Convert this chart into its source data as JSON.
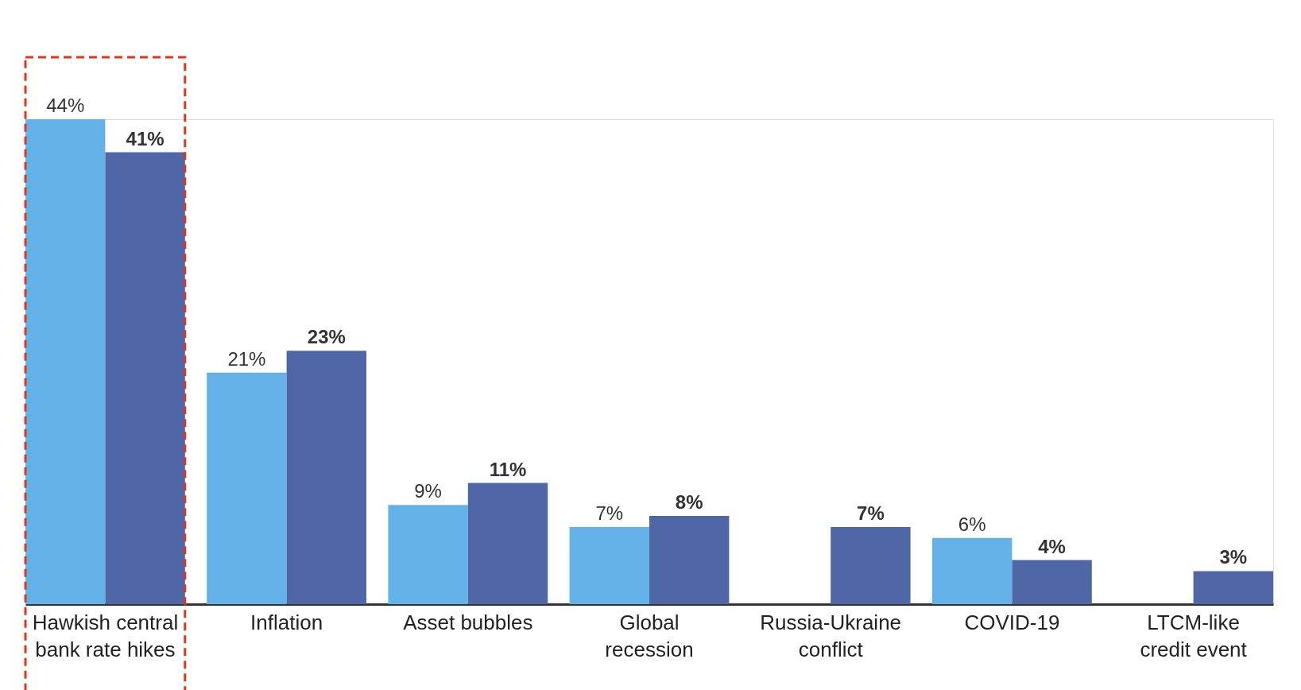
{
  "chart_data": {
    "type": "bar",
    "categories": [
      "Hawkish central bank rate hikes",
      "Inflation",
      "Asset bubbles",
      "Global recession",
      "Russia-Ukraine conflict",
      "COVID-19",
      "LTCM-like credit event"
    ],
    "series": [
      {
        "color": "#64b1e8",
        "values": [
          44,
          21,
          9,
          7,
          null,
          6,
          null
        ],
        "value_labels": [
          "44%",
          "21%",
          "9%",
          "7%",
          null,
          "6%",
          null
        ]
      },
      {
        "color": "#4f67a6",
        "values": [
          41,
          23,
          11,
          8,
          7,
          4,
          3
        ],
        "value_labels": [
          "41%",
          "23%",
          "11%",
          "8%",
          "7%",
          "4%",
          "3%"
        ]
      }
    ],
    "grid": false
  }
}
